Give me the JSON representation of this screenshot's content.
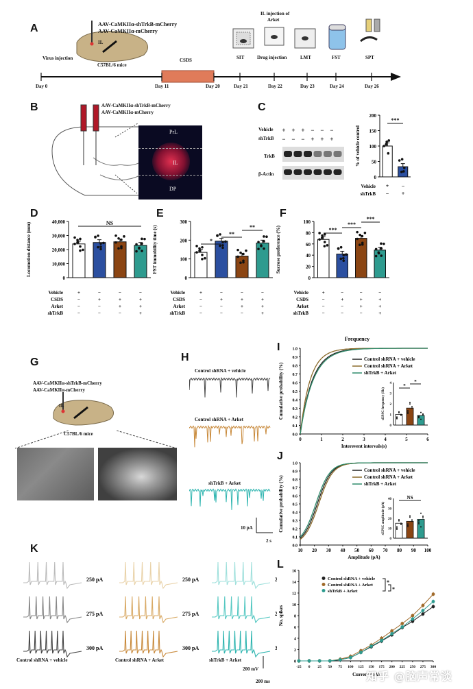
{
  "panels": {
    "A": "A",
    "B": "B",
    "C": "C",
    "D": "D",
    "E": "E",
    "F": "F",
    "G": "G",
    "H": "H",
    "I": "I",
    "J": "J",
    "K": "K",
    "L": "L"
  },
  "panelA": {
    "virus_line1": "AAV-CaMKIIα-shTrkB-mCherry",
    "virus_line2": "AAV-CaMKIIα-mCherry",
    "region": "IL",
    "strain": "C57BL/6 mice",
    "virus_injection": "Virus injection",
    "csds": "CSDS",
    "il_injection_line1": "IL injection of",
    "il_injection_line2": "Arket",
    "sit": "SIT",
    "drug_injection": "Drug injection",
    "lmt": "LMT",
    "fst": "FST",
    "spt": "SPT",
    "days": [
      "Day 0",
      "Day 11",
      "Day 20",
      "Day 21",
      "Day 22",
      "Day 23",
      "Day 24",
      "Day 26"
    ]
  },
  "panelB": {
    "virus_line1": "AAV-CaMKIIα-shTrkB-mCherry",
    "virus_line2": "AAV-CaMKIIα-mCherry",
    "regions": [
      "PrL",
      "IL",
      "DP"
    ]
  },
  "panelC": {
    "rows": [
      "Vehicle",
      "shTrkB"
    ],
    "vehicle_marks": [
      "+",
      "+",
      "+",
      "−",
      "−",
      "−"
    ],
    "shtrkb_marks": [
      "−",
      "−",
      "−",
      "+",
      "+",
      "+"
    ],
    "bands": [
      "TrkB",
      "β-Actin"
    ],
    "ylabel": "% of vehicle control",
    "yticks": [
      "0",
      "50",
      "100",
      "150",
      "200"
    ],
    "sig": "***",
    "x_rows": [
      "Vehicle",
      "shTrkB"
    ],
    "x_vehicle": [
      "+",
      "−"
    ],
    "x_shtrkb": [
      "−",
      "+"
    ]
  },
  "panelD": {
    "ylabel": "Locomotion distance (mm)",
    "yticks": [
      "0",
      "10,000",
      "20,000",
      "30,000",
      "40,000"
    ],
    "sig": "NS"
  },
  "panelE": {
    "ylabel": "FST immobility time (s)",
    "yticks": [
      "0",
      "100",
      "200",
      "300"
    ],
    "sig": [
      "*",
      "**",
      "**"
    ]
  },
  "panelF": {
    "ylabel": "Sucrose preference (%)",
    "yticks": [
      "0",
      "20",
      "40",
      "60",
      "80",
      "100"
    ],
    "sig": [
      "***",
      "***",
      "***"
    ]
  },
  "conditions": {
    "rows": [
      "Vehicle",
      "CSDS",
      "Arket",
      "shTrkB"
    ],
    "marks": [
      [
        "+",
        "−",
        "−",
        "−"
      ],
      [
        "−",
        "+",
        "+",
        "+"
      ],
      [
        "−",
        "−",
        "+",
        "+"
      ],
      [
        "−",
        "−",
        "−",
        "+"
      ]
    ]
  },
  "panelG": {
    "virus_line1": "AAV-CaMKIIα-shTrkB-mCherry",
    "virus_line2": "AAV-CaMKIIα-mCherry",
    "region": "IL",
    "strain": "C57BL/6 mice"
  },
  "panelH": {
    "traces": [
      "Control shRNA + vehicle",
      "Control shRNA + Arket",
      "shTrkB + Arket"
    ],
    "scale_y": "10 pA",
    "scale_x": "2 s"
  },
  "panelI": {
    "title": "Frequency",
    "ylabel": "Cumulative probability (%)",
    "xlabel": "Interevent intervals(s)",
    "yticks": [
      "0.0",
      "0.1",
      "0.2",
      "0.3",
      "0.4",
      "0.5",
      "0.6",
      "0.7",
      "0.8",
      "0.9",
      "1.0"
    ],
    "xticks": [
      "0",
      "1",
      "2",
      "3",
      "4",
      "5",
      "6"
    ],
    "legend": [
      "Control shRNA + vehicle",
      "Control shRNA + Arket",
      "shTrkB + Arket"
    ],
    "inset_ylabel": "sEPSC frequency (Hz)",
    "inset_yticks": [
      "0",
      "1",
      "2",
      "3",
      "4"
    ],
    "inset_sig": [
      "*",
      "*"
    ]
  },
  "panelJ": {
    "ylabel": "Cumulative probability (%)",
    "xlabel": "Amplitude (pA)",
    "yticks": [
      "0.0",
      "0.1",
      "0.2",
      "0.3",
      "0.4",
      "0.5",
      "0.6",
      "0.7",
      "0.8",
      "0.9",
      "1.0"
    ],
    "xticks": [
      "10",
      "20",
      "30",
      "40",
      "50",
      "60",
      "70",
      "80",
      "90",
      "100"
    ],
    "legend": [
      "Control shRNA + vehicle",
      "Control shRNA + Arket",
      "shTrkB + Arket"
    ],
    "inset_ylabel": "sEPSC amplitude (pA)",
    "inset_yticks": [
      "0",
      "10",
      "20",
      "30",
      "40"
    ],
    "inset_sig": "NS"
  },
  "panelK": {
    "currents": [
      "250 pA",
      "275 pA",
      "300 pA"
    ],
    "groups": [
      "Control shRNA + vehicle",
      "Control shRNA + Arket",
      "shTrkB + Arket"
    ],
    "scale_y": "200 mV",
    "scale_x": "200 ms"
  },
  "panelL": {
    "ylabel": "No. spikes",
    "xlabel": "Current (pA)",
    "yticks": [
      "0",
      "2",
      "4",
      "6",
      "8",
      "10",
      "12",
      "14",
      "16"
    ],
    "xticks": [
      "-25",
      "0",
      "25",
      "50",
      "75",
      "100",
      "125",
      "150",
      "175",
      "200",
      "225",
      "250",
      "275",
      "300"
    ],
    "legend": [
      "Control shRNA + vehicle",
      "Control shRNA + Arket",
      "shTrkB + Arket"
    ],
    "sig": [
      "*",
      "*"
    ]
  },
  "watermark": "知乎 @脑声常谈",
  "colors": {
    "vehicle": "#ffffff",
    "csds": "#2b4fa0",
    "arket": "#8b4513",
    "shtrkb": "#2e9b8f",
    "trace_gray": "#444444",
    "trace_orange": "#c8893a",
    "trace_teal": "#2fb5b0",
    "timeline_box": "#e07b5a"
  },
  "chart_data": [
    {
      "type": "bar",
      "id": "C",
      "categories": [
        "Vehicle",
        "shTrkB"
      ],
      "values": [
        100,
        33
      ],
      "ylabel": "% of vehicle control",
      "ylim": [
        0,
        200
      ]
    },
    {
      "type": "bar",
      "id": "D",
      "categories": [
        "Vehicle",
        "CSDS",
        "CSDS+Arket",
        "CSDS+Arket+shTrkB"
      ],
      "values": [
        24000,
        25000,
        25500,
        23000
      ],
      "ylabel": "Locomotion distance (mm)",
      "ylim": [
        0,
        40000
      ]
    },
    {
      "type": "bar",
      "id": "E",
      "categories": [
        "Vehicle",
        "CSDS",
        "CSDS+Arket",
        "CSDS+Arket+shTrkB"
      ],
      "values": [
        135,
        195,
        115,
        185
      ],
      "ylabel": "FST immobility time (s)",
      "ylim": [
        0,
        300
      ]
    },
    {
      "type": "bar",
      "id": "F",
      "categories": [
        "Vehicle",
        "CSDS",
        "CSDS+Arket",
        "CSDS+Arket+shTrkB"
      ],
      "values": [
        68,
        42,
        70,
        49
      ],
      "ylabel": "Sucrose preference (%)",
      "ylim": [
        0,
        100
      ]
    },
    {
      "type": "bar",
      "id": "I-inset",
      "categories": [
        "Control shRNA + vehicle",
        "Control shRNA + Arket",
        "shTrkB + Arket"
      ],
      "values": [
        1.0,
        1.6,
        0.9
      ],
      "ylabel": "sEPSC frequency (Hz)",
      "ylim": [
        0,
        4
      ]
    },
    {
      "type": "bar",
      "id": "J-inset",
      "categories": [
        "Control shRNA + vehicle",
        "Control shRNA + Arket",
        "shTrkB + Arket"
      ],
      "values": [
        15,
        17,
        19
      ],
      "ylabel": "sEPSC amplitude (pA)",
      "ylim": [
        0,
        40
      ]
    },
    {
      "type": "line",
      "id": "L",
      "x": [
        -25,
        0,
        25,
        50,
        75,
        100,
        125,
        150,
        175,
        200,
        225,
        250,
        275,
        300
      ],
      "series": [
        {
          "name": "Control shRNA + vehicle",
          "values": [
            0,
            0,
            0,
            0,
            0.2,
            0.6,
            1.5,
            2.5,
            3.5,
            4.6,
            5.9,
            7.0,
            8.3,
            9.6
          ]
        },
        {
          "name": "Control shRNA + Arket",
          "values": [
            0,
            0,
            0,
            0,
            0.3,
            0.8,
            1.8,
            2.8,
            4.0,
            5.3,
            6.6,
            8.0,
            9.8,
            11.8
          ]
        },
        {
          "name": "shTrkB + Arket",
          "values": [
            0,
            0,
            0,
            0,
            0.2,
            0.6,
            1.5,
            2.6,
            3.6,
            4.8,
            6.0,
            7.4,
            8.9,
            10.5
          ]
        }
      ],
      "ylabel": "No. spikes",
      "xlabel": "Current (pA)",
      "ylim": [
        0,
        16
      ]
    }
  ]
}
